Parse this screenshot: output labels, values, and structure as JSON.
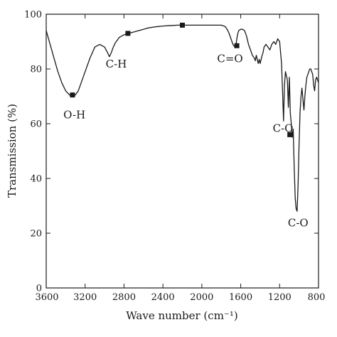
{
  "chart_data": {
    "type": "line",
    "title": "",
    "xlabel": "Wave number (cm⁻¹)",
    "ylabel": "Transmission (%)",
    "xlim": [
      3600,
      800
    ],
    "ylim": [
      0,
      100
    ],
    "x_reversed": true,
    "xticks": [
      "3600",
      "3200",
      "2800",
      "2400",
      "2000",
      "1600",
      "1200",
      "800"
    ],
    "yticks": [
      "0",
      "20",
      "40",
      "60",
      "80",
      "100"
    ],
    "grid": false,
    "line_color": "#1a1a1a",
    "series": [
      {
        "x": [
          3600,
          3560,
          3520,
          3480,
          3440,
          3400,
          3360,
          3330,
          3300,
          3270,
          3240,
          3200,
          3150,
          3100,
          3050,
          3000,
          2970,
          2950,
          2930,
          2910,
          2890,
          2870,
          2850,
          2800,
          2750,
          2700,
          2650,
          2600,
          2550,
          2500,
          2450,
          2400,
          2350,
          2300,
          2250,
          2200,
          2150,
          2100,
          2050,
          2000,
          1950,
          1900,
          1850,
          1800,
          1760,
          1740,
          1720,
          1700,
          1680,
          1660,
          1650,
          1640,
          1630,
          1620,
          1600,
          1580,
          1560,
          1540,
          1520,
          1500,
          1480,
          1460,
          1450,
          1440,
          1420,
          1410,
          1400,
          1380,
          1370,
          1360,
          1340,
          1320,
          1300,
          1280,
          1260,
          1240,
          1220,
          1200,
          1180,
          1170,
          1160,
          1150,
          1140,
          1120,
          1110,
          1100,
          1090,
          1080,
          1070,
          1060,
          1050,
          1040,
          1030,
          1020,
          1010,
          1000,
          990,
          980,
          970,
          960,
          950,
          940,
          930,
          920,
          910,
          900,
          890,
          880,
          870,
          860,
          850,
          840,
          830,
          820,
          810,
          800
        ],
        "y": [
          94,
          89,
          84,
          79,
          75,
          72,
          70.5,
          70,
          70.5,
          72,
          75,
          79,
          84,
          88,
          89,
          88,
          86,
          84.5,
          86,
          88,
          89.5,
          90.5,
          91.5,
          92.5,
          93,
          93.5,
          94,
          94.5,
          95,
          95.3,
          95.5,
          95.7,
          95.8,
          95.9,
          96,
          96,
          96,
          96,
          96,
          96,
          96,
          96,
          96,
          96,
          95.5,
          94.5,
          93,
          91,
          89,
          88,
          88.5,
          91,
          93,
          94,
          94.5,
          94.5,
          94,
          92,
          89,
          87,
          85,
          84,
          83,
          85,
          82,
          83.5,
          82,
          85,
          86,
          88,
          89,
          88,
          87,
          89,
          90,
          89,
          91,
          90,
          82,
          72,
          61,
          74,
          79,
          76,
          66,
          77,
          64,
          60,
          55,
          58,
          44,
          33,
          29,
          28,
          38,
          52,
          64,
          70,
          73,
          69,
          65,
          70,
          74,
          77,
          78,
          79,
          80,
          80,
          79,
          78,
          74,
          72,
          76,
          77,
          76,
          75
        ]
      }
    ],
    "markers": [
      {
        "x": 3330,
        "y": 70.5
      },
      {
        "x": 2760,
        "y": 93
      },
      {
        "x": 2200,
        "y": 96
      },
      {
        "x": 1640,
        "y": 88.5
      },
      {
        "x": 1095,
        "y": 56
      }
    ],
    "annotations": [
      {
        "text": "O-H",
        "x": 3310,
        "y": 62
      },
      {
        "text": "C-H",
        "x": 2880,
        "y": 80.5
      },
      {
        "text": "C=O",
        "x": 1710,
        "y": 82.5
      },
      {
        "text": "C-O",
        "x": 1165,
        "y": 57
      },
      {
        "text": "C-O",
        "x": 1010,
        "y": 22.5
      }
    ]
  }
}
